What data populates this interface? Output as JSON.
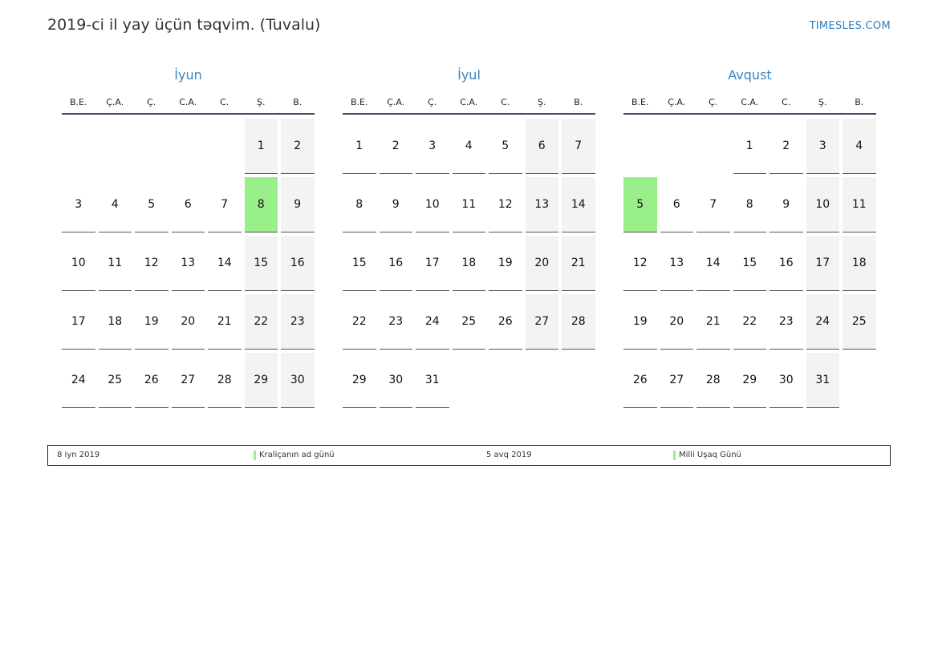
{
  "header": {
    "title": "2019-ci il yay üçün təqvim. (Tuvalu)",
    "brand": "TIMESLES.COM"
  },
  "weekdays": [
    "B.E.",
    "Ç.A.",
    "Ç.",
    "C.A.",
    "C.",
    "Ş.",
    "B."
  ],
  "colors": {
    "holiday": "#99f08a",
    "weekend": "#f3f3f3",
    "accent": "#3a86c4"
  },
  "months": [
    {
      "name": "İyun",
      "weeks": [
        [
          "",
          "",
          "",
          "",
          "",
          "1",
          "2"
        ],
        [
          "3",
          "4",
          "5",
          "6",
          "7",
          "8",
          "9"
        ],
        [
          "10",
          "11",
          "12",
          "13",
          "14",
          "15",
          "16"
        ],
        [
          "17",
          "18",
          "19",
          "20",
          "21",
          "22",
          "23"
        ],
        [
          "24",
          "25",
          "26",
          "27",
          "28",
          "29",
          "30"
        ]
      ],
      "holidays": [
        "8"
      ]
    },
    {
      "name": "İyul",
      "weeks": [
        [
          "1",
          "2",
          "3",
          "4",
          "5",
          "6",
          "7"
        ],
        [
          "8",
          "9",
          "10",
          "11",
          "12",
          "13",
          "14"
        ],
        [
          "15",
          "16",
          "17",
          "18",
          "19",
          "20",
          "21"
        ],
        [
          "22",
          "23",
          "24",
          "25",
          "26",
          "27",
          "28"
        ],
        [
          "29",
          "30",
          "31",
          "",
          "",
          "",
          ""
        ]
      ],
      "holidays": []
    },
    {
      "name": "Avqust",
      "weeks": [
        [
          "",
          "",
          "",
          "1",
          "2",
          "3",
          "4"
        ],
        [
          "5",
          "6",
          "7",
          "8",
          "9",
          "10",
          "11"
        ],
        [
          "12",
          "13",
          "14",
          "15",
          "16",
          "17",
          "18"
        ],
        [
          "19",
          "20",
          "21",
          "22",
          "23",
          "24",
          "25"
        ],
        [
          "26",
          "27",
          "28",
          "29",
          "30",
          "31",
          ""
        ]
      ],
      "holidays": [
        "5"
      ]
    }
  ],
  "legend": [
    {
      "date": "8 iyn 2019",
      "name": "Kraliçanın ad günü"
    },
    {
      "date": "5 avq 2019",
      "name": "Milli Uşaq Günü"
    }
  ]
}
